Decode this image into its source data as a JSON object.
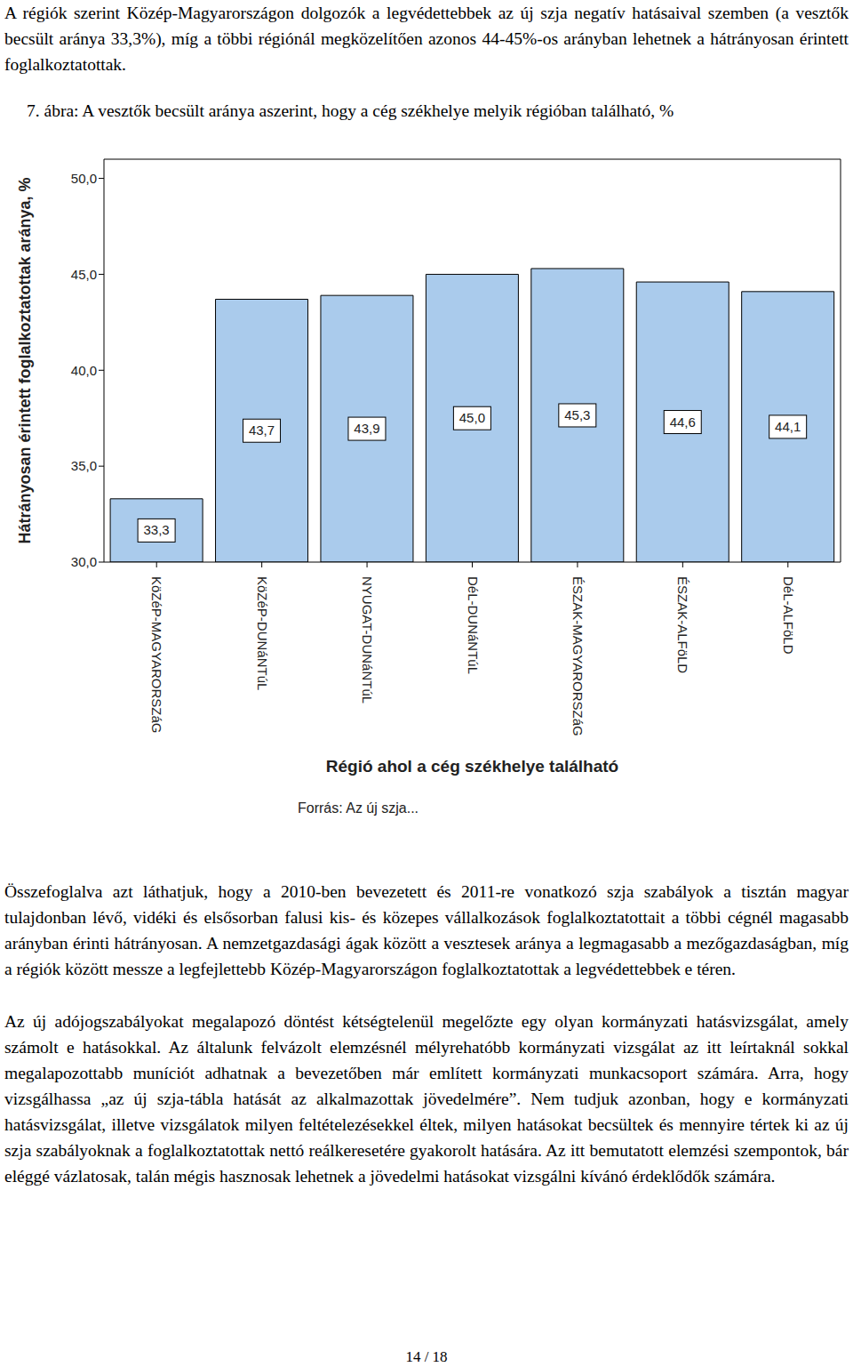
{
  "paragraphs_top": [
    "A régiók szerint Közép-Magyarországon dolgozók a legvédettebbek az új szja negatív hatásaival szemben (a vesztők becsült aránya 33,3%), míg a többi régiónál megközelítően azonos 44-45%-os arányban lehetnek a hátrányosan érintett foglalkoztatottak."
  ],
  "chart_data": {
    "type": "bar",
    "title": "7. ábra: A vesztők becsült aránya aszerint, hogy a cég székhelye melyik régióban található, %",
    "x_label": "Régió ahol a cég székhelye található",
    "y_label": "Hátrányosan érintett foglalkoztatottak aránya, %",
    "categories": [
      "KöZéP-MAGYARORSZáG",
      "KöZéP-DUNáNTúL",
      "NYUGAT-DUNáNTúL",
      "DéL-DUNáNTúL",
      "ÉSZAK-MAGYARORSZáG",
      "ÉSZAK-ALFöLD",
      "DéL-ALFöLD"
    ],
    "values": [
      33.3,
      43.7,
      43.9,
      45.0,
      45.3,
      44.6,
      44.1
    ],
    "value_labels": [
      "33,3",
      "43,7",
      "43,9",
      "45,0",
      "45,3",
      "44,6",
      "44,1"
    ],
    "color": "#aacbec",
    "ylim": [
      30,
      51
    ],
    "yticks": [
      {
        "value": 30,
        "label": "30,0"
      },
      {
        "value": 35,
        "label": "35,0"
      },
      {
        "value": 40,
        "label": "40,0"
      },
      {
        "value": 45,
        "label": "45,0"
      },
      {
        "value": 50,
        "label": "50,0"
      }
    ],
    "grid": false,
    "data_labels": true
  },
  "figure_source": "Forrás: Az új szja...",
  "paragraphs_bottom": [
    "Összefoglalva azt láthatjuk, hogy a 2010-ben bevezetett és 2011-re vonatkozó szja szabályok a tisztán magyar tulajdonban lévő, vidéki és elsősorban falusi kis- és közepes vállalkozások foglalkoztatottait a többi cégnél magasabb arányban érinti hátrányosan. A nemzetgazdasági ágak között a vesztesek aránya a legmagasabb a mezőgazdaságban, míg a régiók között messze a legfejlettebb Közép-Magyarországon foglalkoztatottak a legvédettebbek e téren.",
    "Az új adójogszabályokat megalapozó döntést kétségtelenül megelőzte egy olyan kormányzati hatásvizsgálat, amely számolt e hatásokkal. Az általunk felvázolt elemzésnél mélyrehatóbb kormányzati vizsgálat az itt leírtaknál sokkal megalapozottabb muníciót adhatnak a bevezetőben már említett kormányzati munkacsoport számára. Arra, hogy vizsgálhassa „az új szja-tábla hatását az alkalmazottak jövedelmére”. Nem tudjuk azonban, hogy e kormányzati hatásvizsgálat, illetve vizsgálatok milyen feltételezésekkel éltek, milyen hatásokat becsültek és mennyire tértek ki az új szja szabályoknak a foglalkoztatottak nettó reálkeresetére gyakorolt hatására. Az itt bemutatott elemzési szempontok, bár eléggé vázlatosak, talán mégis hasznosak lehetnek a jövedelmi hatásokat vizsgálni kívánó érdeklődők számára."
  ],
  "page": "14 / 18"
}
